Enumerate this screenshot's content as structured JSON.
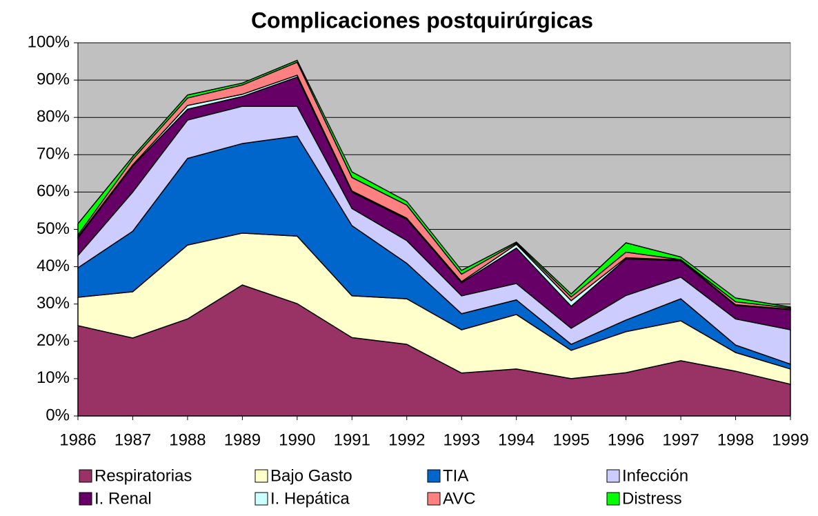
{
  "chart_data": {
    "type": "stacked_area",
    "title": "Complicaciones postquirúrgicas",
    "categories": [
      "1986",
      "1987",
      "1988",
      "1989",
      "1990",
      "1991",
      "1992",
      "1993",
      "1994",
      "1995",
      "1996",
      "1997",
      "1998",
      "1999"
    ],
    "series": [
      {
        "name": "Respiratorias",
        "color": "#993366",
        "values": [
          24.2,
          20.9,
          26,
          35.1,
          30.1,
          21,
          19.2,
          11.5,
          12.6,
          10,
          11.6,
          14.8,
          12,
          8.5
        ]
      },
      {
        "name": "Bajo Gasto",
        "color": "#FFFFCC",
        "values": [
          7.6,
          12.4,
          19.8,
          13.9,
          18.1,
          11.2,
          12.2,
          11.6,
          14.6,
          7.6,
          11,
          10.7,
          5,
          4.1
        ]
      },
      {
        "name": "TIA",
        "color": "#0066CC",
        "values": [
          7.9,
          16.2,
          23.2,
          24,
          26.8,
          18.8,
          9.5,
          4.3,
          3.9,
          1.6,
          3.1,
          5.9,
          2,
          1.3
        ]
      },
      {
        "name": "Infección",
        "color": "#CCCCFF",
        "values": [
          3.3,
          10.5,
          10.3,
          10,
          8,
          4.6,
          6.1,
          4.8,
          4.4,
          4.3,
          6.6,
          5.8,
          7,
          9.2
        ]
      },
      {
        "name": "I. Renal",
        "color": "#660066",
        "values": [
          4.7,
          7,
          2.9,
          2.6,
          7.8,
          4.4,
          5.7,
          3.5,
          9.5,
          5.9,
          9.8,
          4.4,
          3.6,
          5.4
        ]
      },
      {
        "name": "I. Hepática",
        "color": "#CCFFFF",
        "values": [
          0.3,
          0.3,
          1,
          0.6,
          0.5,
          0.3,
          0.3,
          0.3,
          1,
          1.5,
          0.3,
          0.2,
          0.2,
          0.1
        ]
      },
      {
        "name": "AVC",
        "color": "#FF8080",
        "values": [
          0.5,
          1.5,
          2,
          2.5,
          3.5,
          3.6,
          3.5,
          2,
          0.3,
          1,
          1.5,
          0.1,
          0.8,
          0.3
        ]
      },
      {
        "name": "Distress",
        "color": "#00FF00",
        "values": [
          3,
          0.7,
          0.8,
          0.5,
          0.5,
          1.5,
          1,
          1,
          0.3,
          0.8,
          2.5,
          0.7,
          1,
          0.3
        ]
      }
    ],
    "ylim": [
      0,
      100
    ],
    "yticks": [
      {
        "value": 0,
        "label": "0%"
      },
      {
        "value": 10,
        "label": "10%"
      },
      {
        "value": 20,
        "label": "20%"
      },
      {
        "value": 30,
        "label": "30%"
      },
      {
        "value": 40,
        "label": "40%"
      },
      {
        "value": 50,
        "label": "50%"
      },
      {
        "value": 60,
        "label": "60%"
      },
      {
        "value": 70,
        "label": "70%"
      },
      {
        "value": 80,
        "label": "80%"
      },
      {
        "value": 90,
        "label": "90%"
      },
      {
        "value": 100,
        "label": "100%"
      }
    ],
    "grid": true,
    "legend": "bottom",
    "background": "#C0C0C0"
  }
}
